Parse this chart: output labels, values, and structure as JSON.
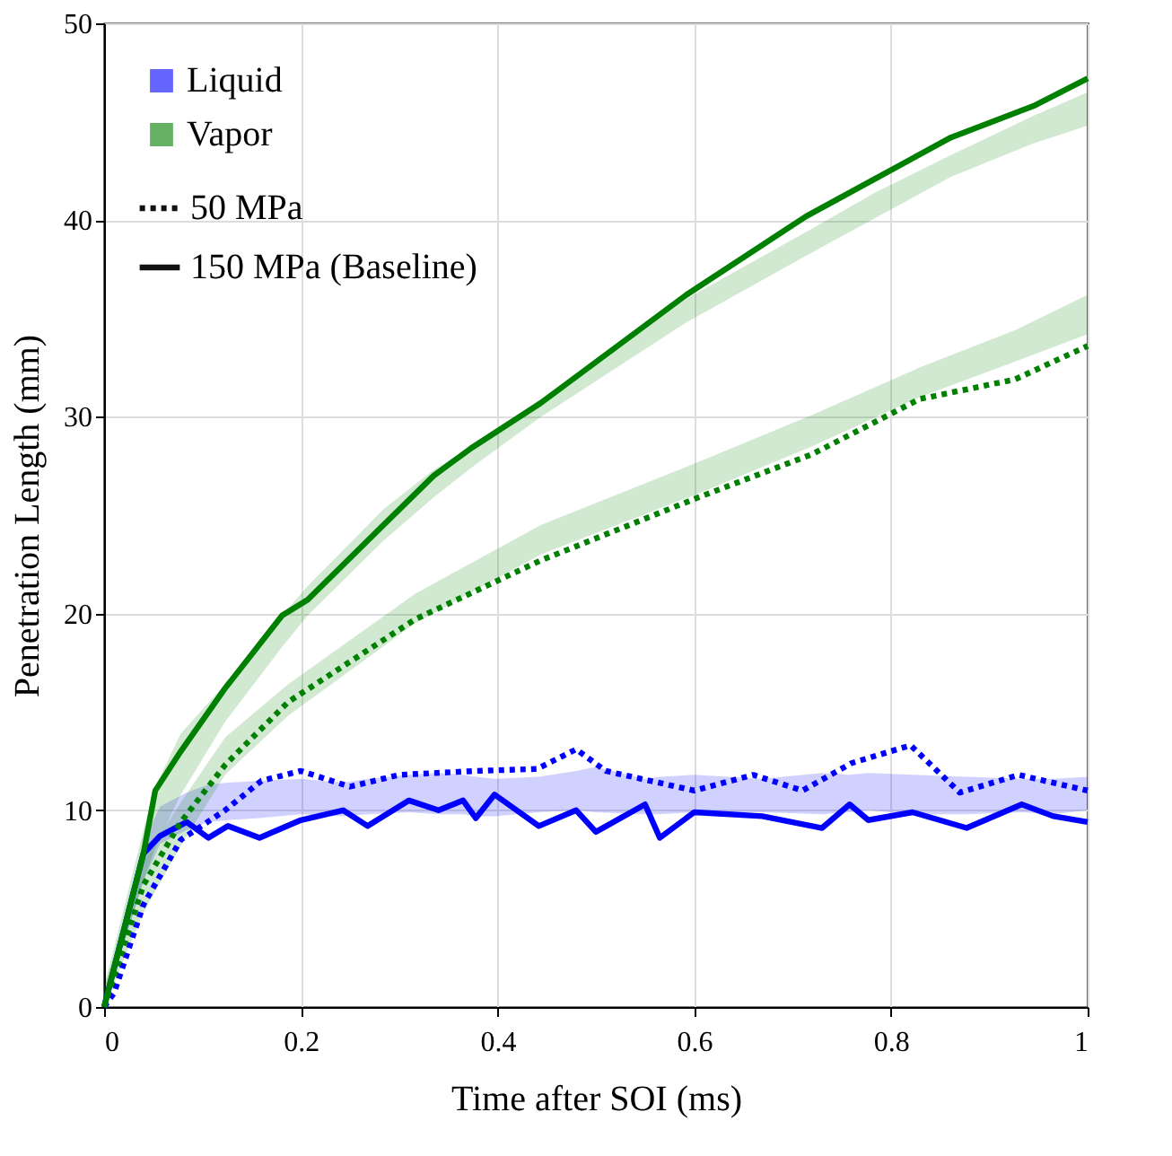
{
  "chart_data": {
    "type": "line",
    "xlabel": "Time after SOI (ms)",
    "ylabel": "Penetration Length (mm)",
    "xlim": [
      0,
      1
    ],
    "ylim": [
      0,
      50
    ],
    "xticks": [
      0,
      0.2,
      0.4,
      0.6,
      0.8,
      1
    ],
    "yticks": [
      0,
      10,
      20,
      30,
      40,
      50
    ],
    "grid": true,
    "legend": "top left",
    "annotations": [
      "50 MPa",
      "150 MPa (Baseline)"
    ],
    "series": [
      {
        "name": "Liquid",
        "color": "#0000ff",
        "line_style": "dotted",
        "x": [
          0,
          0.01,
          0.04,
          0.078,
          0.123,
          0.16,
          0.2,
          0.25,
          0.3,
          0.378,
          0.44,
          0.48,
          0.51,
          0.6,
          0.66,
          0.71,
          0.76,
          0.82,
          0.87,
          0.93,
          1
        ],
        "values": [
          0,
          0.7,
          5.2,
          8.5,
          10,
          11.5,
          12,
          11.2,
          11.8,
          12,
          12.1,
          13.1,
          12,
          11,
          11.8,
          11,
          12.4,
          13.3,
          10.9,
          11.8,
          11
        ]
      },
      {
        "color": "#0000ff",
        "line_style": "solid",
        "x": [
          0,
          0.04,
          0.057,
          0.084,
          0.106,
          0.126,
          0.158,
          0.2,
          0.243,
          0.268,
          0.31,
          0.34,
          0.365,
          0.378,
          0.397,
          0.442,
          0.48,
          0.5,
          0.55,
          0.565,
          0.6,
          0.669,
          0.73,
          0.758,
          0.777,
          0.822,
          0.877,
          0.933,
          0.965,
          1
        ],
        "values": [
          0,
          7.8,
          8.7,
          9.4,
          8.6,
          9.2,
          8.6,
          9.5,
          10,
          9.2,
          10.5,
          10,
          10.5,
          9.6,
          10.8,
          9.2,
          10,
          8.9,
          10.3,
          8.6,
          9.9,
          9.7,
          9.1,
          10.3,
          9.5,
          9.9,
          9.1,
          10.3,
          9.7,
          9.4
        ],
        "lower": [
          0,
          6.4,
          8.3,
          9.0,
          9.4,
          9.5,
          9.6,
          9.8,
          9.7,
          9.8,
          9.9,
          9.8,
          9.8,
          9.7,
          9.7,
          9.9,
          10,
          9.9,
          9.8,
          9.8,
          9.9,
          9.9,
          9.8,
          9.9,
          10,
          9.8,
          9.8,
          9.9,
          9.8,
          10
        ],
        "upper": [
          0.5,
          8.4,
          10.2,
          10.9,
          11.3,
          11.4,
          11.5,
          11.6,
          11.4,
          11.6,
          11.8,
          11.9,
          11.8,
          11.7,
          11.6,
          11.7,
          12.0,
          12.2,
          11.6,
          11.7,
          11.8,
          11.6,
          11.9,
          11.8,
          11.9,
          11.8,
          11.7,
          11.6,
          11.6,
          11.7
        ]
      },
      {
        "name": "Vapor",
        "color": "#008000",
        "line_style": "dotted",
        "x": [
          0,
          0.04,
          0.078,
          0.123,
          0.187,
          0.316,
          0.444,
          0.604,
          0.72,
          0.829,
          0.926,
          1
        ],
        "values": [
          0,
          6.2,
          9.4,
          12.3,
          15.5,
          19.7,
          22.7,
          25.9,
          28.1,
          30.9,
          31.9,
          33.6
        ],
        "lower": [
          0,
          4.8,
          8.2,
          11.8,
          14.8,
          19.5,
          23.0,
          26.1,
          28.5,
          31.0,
          32.8,
          34.2
        ],
        "upper": [
          1,
          7.4,
          10.4,
          13.7,
          16.4,
          21.0,
          24.5,
          27.7,
          30.1,
          32.5,
          34.4,
          36.2
        ]
      },
      {
        "color": "#008000",
        "line_style": "solid",
        "x": [
          0,
          0.04,
          0.052,
          0.078,
          0.123,
          0.181,
          0.207,
          0.284,
          0.335,
          0.373,
          0.444,
          0.592,
          0.714,
          0.784,
          0.861,
          0.945,
          1
        ],
        "values": [
          0,
          7.8,
          11,
          13,
          16.2,
          19.9,
          20.7,
          24.5,
          27,
          28.4,
          30.7,
          36.2,
          40.2,
          42.1,
          44.2,
          45.8,
          47.2
        ],
        "lower": [
          0,
          6.4,
          8.1,
          10.8,
          14.5,
          18.3,
          19.9,
          23.7,
          25.9,
          27.4,
          30.0,
          34.8,
          38.2,
          40.1,
          42.2,
          43.9,
          44.8
        ],
        "upper": [
          1,
          9.0,
          11.2,
          13.9,
          16.4,
          19.9,
          21.4,
          25.3,
          27.3,
          28.4,
          30.9,
          36.0,
          39.4,
          41.4,
          43.3,
          45.3,
          46.5
        ]
      }
    ]
  }
}
